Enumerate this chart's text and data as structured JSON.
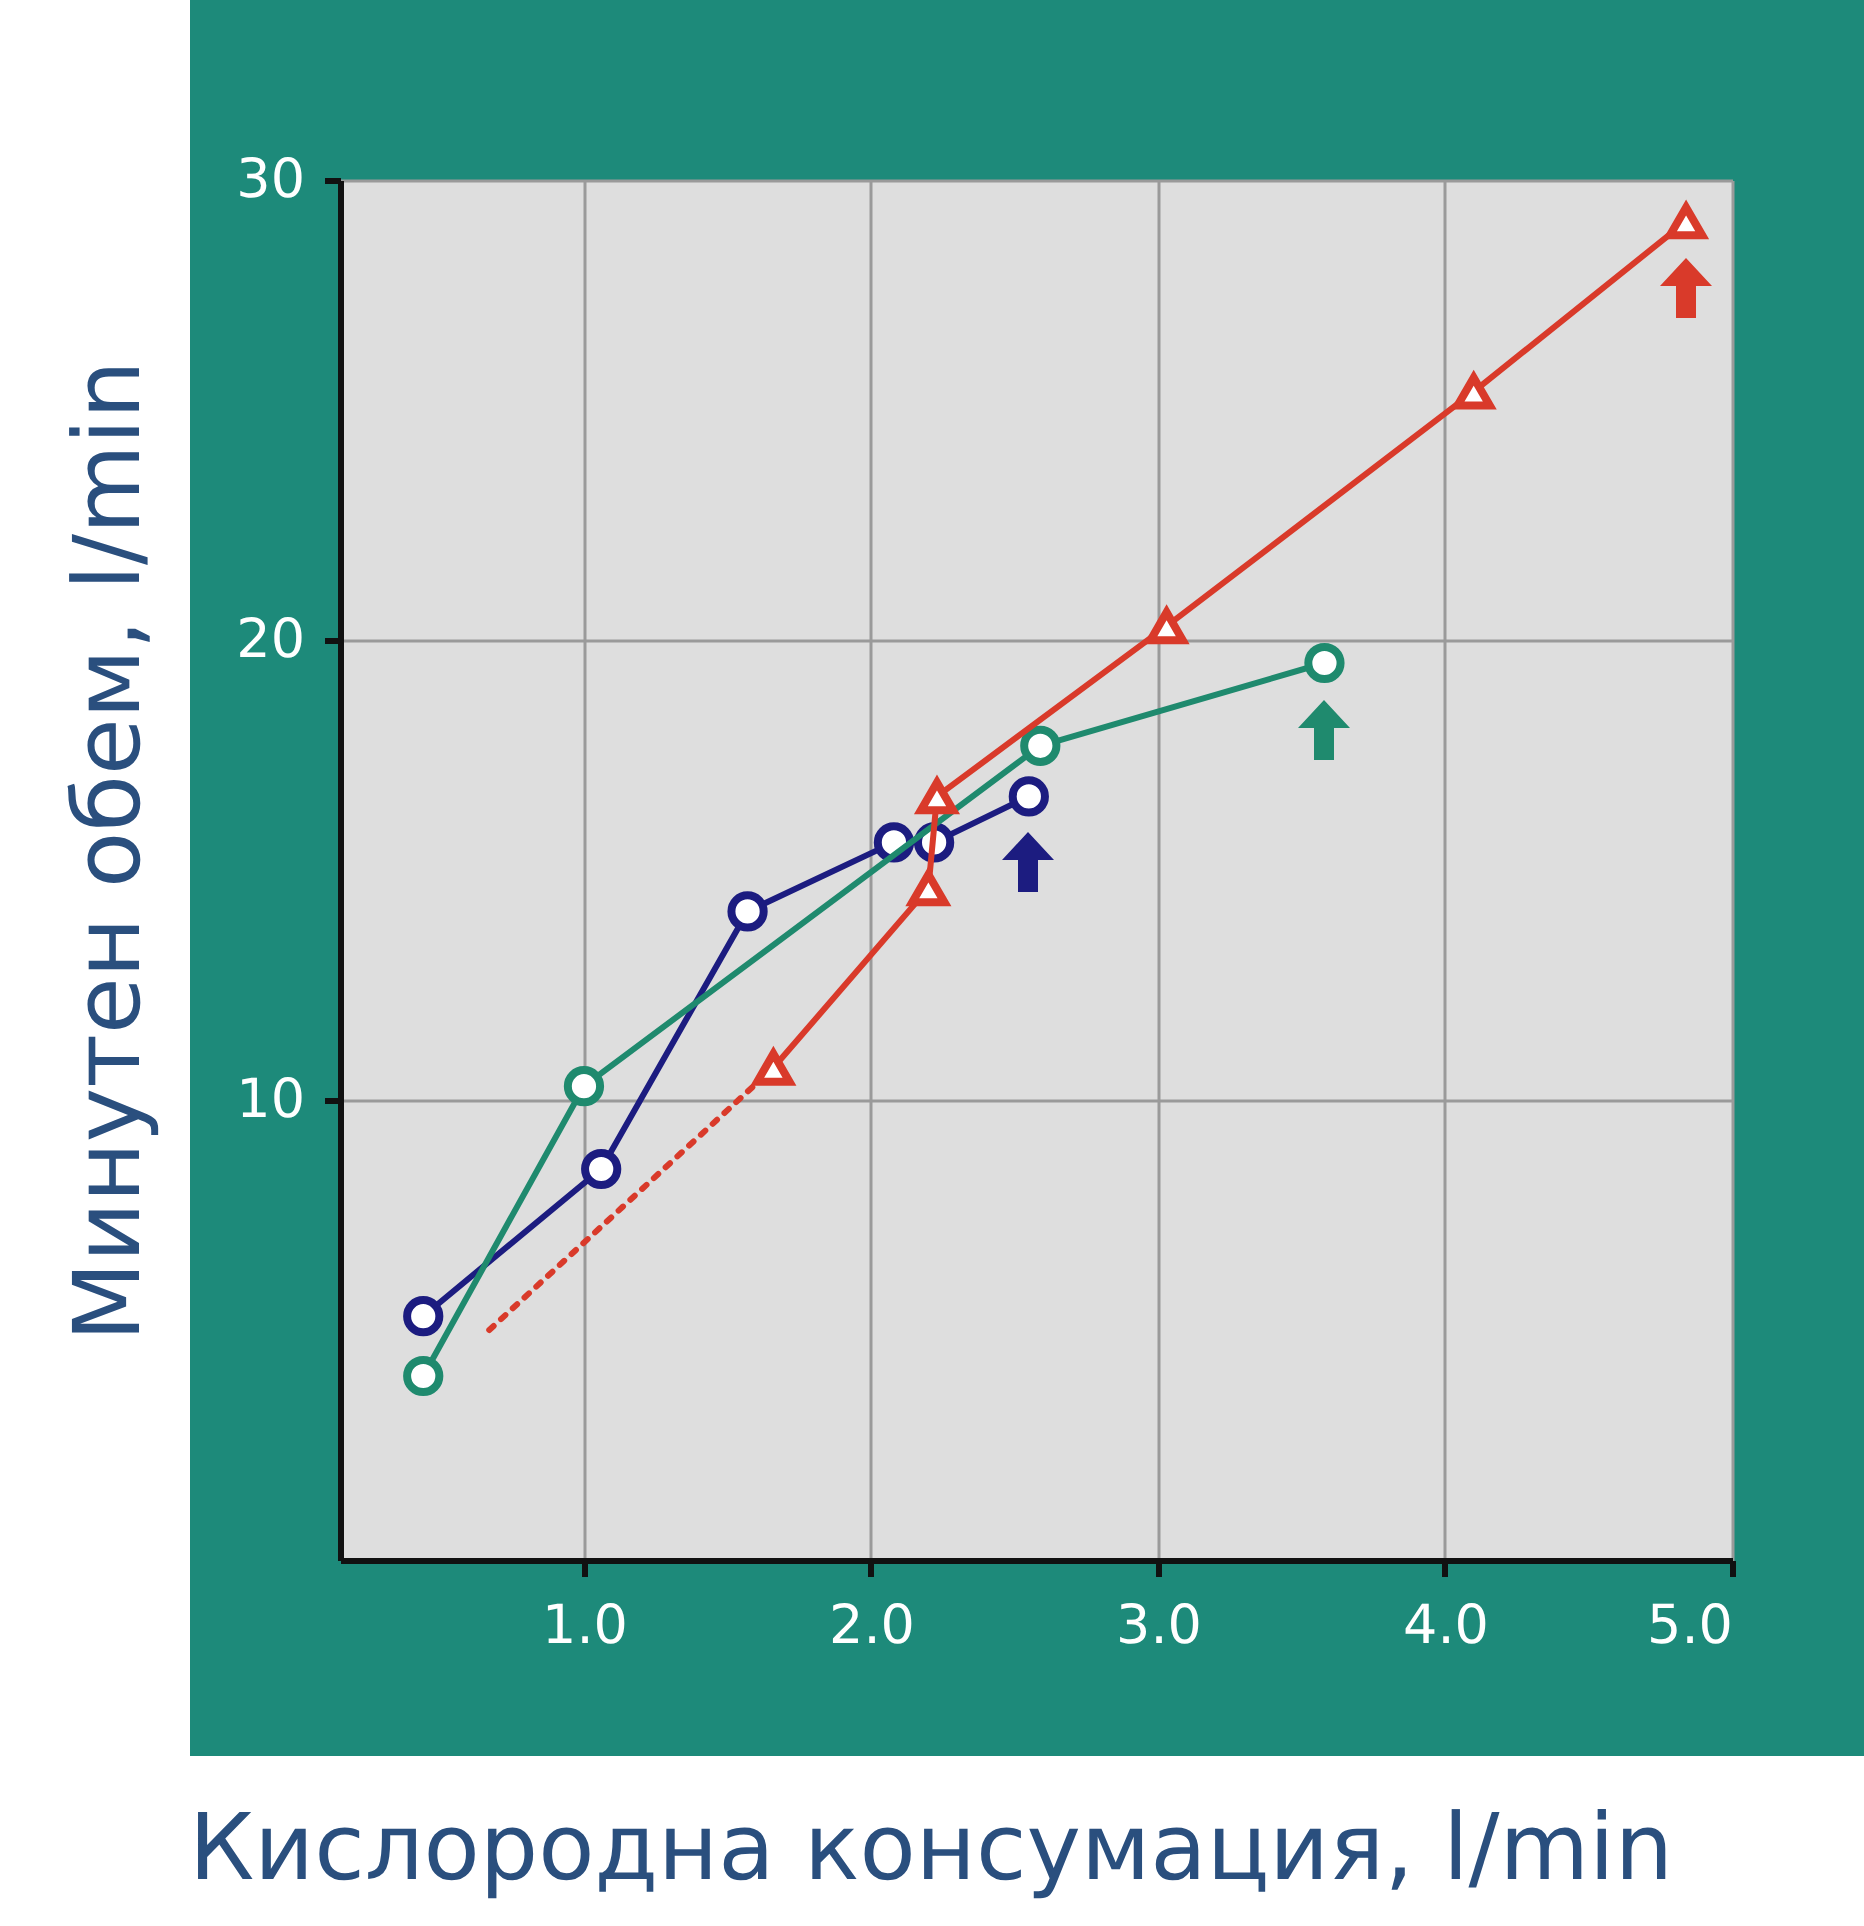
{
  "chart_data": {
    "type": "line",
    "xlabel": "Кислородна консумация, l/min",
    "ylabel": "Минутен обем,    l/min",
    "xlim": [
      0.15,
      5.0
    ],
    "ylim": [
      0,
      30
    ],
    "xticks": [
      {
        "value": 1,
        "label": "1.0"
      },
      {
        "value": 2,
        "label": "2.0"
      },
      {
        "value": 3,
        "label": "3.0"
      },
      {
        "value": 4,
        "label": "4.0"
      },
      {
        "value": 5,
        "label": "5.0"
      }
    ],
    "yticks": [
      10,
      20,
      30
    ],
    "grid": true,
    "series": [
      {
        "color": "#1c1c80",
        "marker": "circle",
        "line_style": "solid",
        "x": [
          0.44,
          1.06,
          1.57,
          2.08,
          2.22,
          2.55
        ],
        "values": [
          5.3,
          8.5,
          14.1,
          15.6,
          15.6,
          16.6
        ]
      },
      {
        "color": "#1f8a6e",
        "marker": "circle",
        "line_style": "solid",
        "x": [
          0.44,
          1.0,
          2.59,
          3.58
        ],
        "values": [
          4.0,
          10.3,
          17.7,
          19.5
        ]
      },
      {
        "color": "#d93a2a",
        "line_style": "dotted",
        "x": [
          0.67,
          1.66
        ],
        "values": [
          5.0,
          10.7
        ]
      },
      {
        "color": "#d93a2a",
        "marker": "triangle",
        "line_style": "solid",
        "x": [
          1.66,
          2.2,
          2.23,
          3.03,
          4.1,
          4.84
        ],
        "values": [
          10.7,
          14.6,
          16.6,
          20.3,
          25.4,
          29.1
        ]
      }
    ]
  }
}
